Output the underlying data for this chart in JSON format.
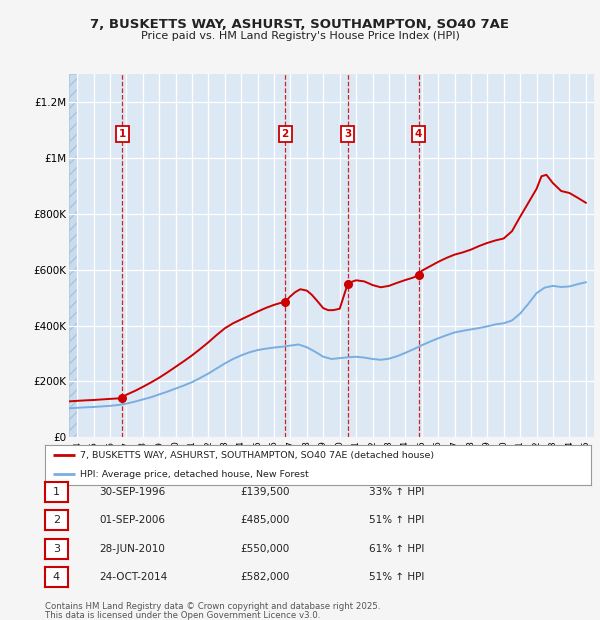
{
  "title_line1": "7, BUSKETTS WAY, ASHURST, SOUTHAMPTON, SO40 7AE",
  "title_line2": "Price paid vs. HM Land Registry's House Price Index (HPI)",
  "fig_bg_color": "#f5f5f5",
  "plot_bg_color": "#dce9f5",
  "purchases": [
    {
      "label": "1",
      "date_str": "30-SEP-1996",
      "date_x": 1996.75,
      "price": 139500,
      "hpi_pct": "33% ↑ HPI"
    },
    {
      "label": "2",
      "date_str": "01-SEP-2006",
      "date_x": 2006.67,
      "price": 485000,
      "hpi_pct": "51% ↑ HPI"
    },
    {
      "label": "3",
      "date_str": "28-JUN-2010",
      "date_x": 2010.49,
      "price": 550000,
      "hpi_pct": "61% ↑ HPI"
    },
    {
      "label": "4",
      "date_str": "24-OCT-2014",
      "date_x": 2014.81,
      "price": 582000,
      "hpi_pct": "51% ↑ HPI"
    }
  ],
  "property_line_color": "#cc0000",
  "hpi_line_color": "#7aade0",
  "ylim": [
    0,
    1300000
  ],
  "xlim_start": 1993.5,
  "xlim_end": 2025.5,
  "yticks": [
    0,
    200000,
    400000,
    600000,
    800000,
    1000000,
    1200000
  ],
  "ytick_labels": [
    "£0",
    "£200K",
    "£400K",
    "£600K",
    "£800K",
    "£1M",
    "£1.2M"
  ],
  "xtick_years": [
    1994,
    1995,
    1996,
    1997,
    1998,
    1999,
    2000,
    2001,
    2002,
    2003,
    2004,
    2005,
    2006,
    2007,
    2008,
    2009,
    2010,
    2011,
    2012,
    2013,
    2014,
    2015,
    2016,
    2017,
    2018,
    2019,
    2020,
    2021,
    2022,
    2023,
    2024,
    2025
  ],
  "legend_label_property": "7, BUSKETTS WAY, ASHURST, SOUTHAMPTON, SO40 7AE (detached house)",
  "legend_label_hpi": "HPI: Average price, detached house, New Forest",
  "footer_line1": "Contains HM Land Registry data © Crown copyright and database right 2025.",
  "footer_line2": "This data is licensed under the Open Government Licence v3.0.",
  "property_data_x": [
    1993.5,
    1994.0,
    1994.3,
    1994.6,
    1995.0,
    1995.5,
    1996.0,
    1996.75,
    1997.0,
    1997.5,
    1998.0,
    1998.5,
    1999.0,
    1999.5,
    2000.0,
    2000.5,
    2001.0,
    2001.5,
    2002.0,
    2002.5,
    2003.0,
    2003.5,
    2004.0,
    2004.5,
    2005.0,
    2005.5,
    2006.0,
    2006.4,
    2006.67,
    2007.0,
    2007.3,
    2007.6,
    2008.0,
    2008.3,
    2008.6,
    2009.0,
    2009.3,
    2009.6,
    2010.0,
    2010.49,
    2010.8,
    2011.0,
    2011.5,
    2012.0,
    2012.5,
    2013.0,
    2013.5,
    2014.0,
    2014.5,
    2014.81,
    2015.0,
    2015.5,
    2016.0,
    2016.5,
    2017.0,
    2017.5,
    2018.0,
    2018.5,
    2019.0,
    2019.5,
    2020.0,
    2020.5,
    2021.0,
    2021.5,
    2022.0,
    2022.3,
    2022.6,
    2023.0,
    2023.5,
    2024.0,
    2024.5,
    2025.0
  ],
  "property_data_y": [
    128000,
    130000,
    131000,
    132000,
    133000,
    135000,
    137000,
    139500,
    152000,
    165000,
    180000,
    196000,
    213000,
    232000,
    252000,
    272000,
    293000,
    316000,
    340000,
    366000,
    390000,
    408000,
    422000,
    436000,
    450000,
    463000,
    474000,
    481000,
    485000,
    505000,
    520000,
    530000,
    525000,
    510000,
    490000,
    462000,
    455000,
    455000,
    460000,
    550000,
    558000,
    562000,
    558000,
    545000,
    537000,
    542000,
    553000,
    563000,
    572000,
    582000,
    596000,
    612000,
    628000,
    642000,
    654000,
    662000,
    672000,
    685000,
    696000,
    705000,
    712000,
    738000,
    790000,
    840000,
    890000,
    935000,
    940000,
    910000,
    882000,
    875000,
    858000,
    840000
  ],
  "hpi_data_x": [
    1993.5,
    1994.0,
    1994.3,
    1994.6,
    1995.0,
    1995.5,
    1996.0,
    1996.5,
    1997.0,
    1997.5,
    1998.0,
    1998.5,
    1999.0,
    1999.5,
    2000.0,
    2000.5,
    2001.0,
    2001.5,
    2002.0,
    2002.5,
    2003.0,
    2003.5,
    2004.0,
    2004.5,
    2005.0,
    2005.5,
    2006.0,
    2006.5,
    2007.0,
    2007.5,
    2008.0,
    2008.5,
    2009.0,
    2009.5,
    2010.0,
    2010.5,
    2011.0,
    2011.5,
    2012.0,
    2012.5,
    2013.0,
    2013.5,
    2014.0,
    2014.5,
    2015.0,
    2015.5,
    2016.0,
    2016.5,
    2017.0,
    2017.5,
    2018.0,
    2018.5,
    2019.0,
    2019.5,
    2020.0,
    2020.5,
    2021.0,
    2021.5,
    2022.0,
    2022.5,
    2023.0,
    2023.5,
    2024.0,
    2024.5,
    2025.0
  ],
  "hpi_data_y": [
    103000,
    105000,
    106000,
    107000,
    108000,
    110000,
    112000,
    115000,
    120000,
    127000,
    135000,
    143000,
    153000,
    163000,
    174000,
    185000,
    197000,
    212000,
    228000,
    246000,
    264000,
    280000,
    293000,
    304000,
    312000,
    317000,
    321000,
    324000,
    328000,
    332000,
    322000,
    306000,
    288000,
    280000,
    283000,
    286000,
    288000,
    285000,
    280000,
    277000,
    281000,
    290000,
    302000,
    315000,
    329000,
    342000,
    354000,
    365000,
    375000,
    381000,
    386000,
    391000,
    397000,
    404000,
    408000,
    418000,
    443000,
    478000,
    516000,
    536000,
    542000,
    538000,
    540000,
    548000,
    555000
  ]
}
